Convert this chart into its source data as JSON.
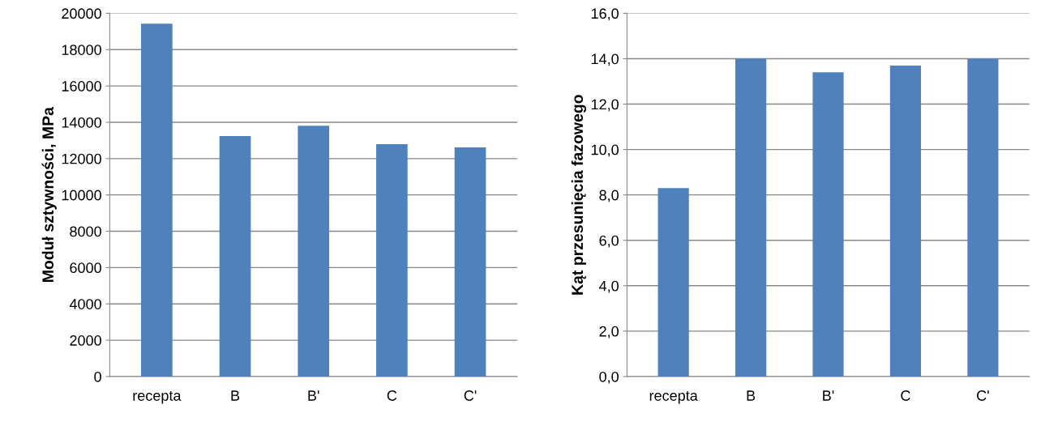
{
  "chart_data": [
    {
      "type": "bar",
      "ylabel": "Moduł sztywności, MPa",
      "categories": [
        "recepta",
        "B",
        "B'",
        "C",
        "C'"
      ],
      "values": [
        19430,
        13240,
        13810,
        12790,
        12620
      ],
      "color": "#4f81bd",
      "ylim": [
        0,
        20000
      ],
      "yticks": [
        0,
        2000,
        4000,
        6000,
        8000,
        10000,
        12000,
        14000,
        16000,
        18000,
        20000
      ],
      "grid": "y"
    },
    {
      "type": "bar",
      "ylabel": "Kąt przesunięcia fazowego",
      "categories": [
        "recepta",
        "B",
        "B'",
        "C",
        "C'"
      ],
      "values": [
        8.3,
        14.0,
        13.4,
        13.7,
        14.0
      ],
      "color": "#4f81bd",
      "ylim": [
        0,
        16
      ],
      "yticks": [
        {
          "value": 0,
          "label": "0,0"
        },
        {
          "value": 2,
          "label": "2,0"
        },
        {
          "value": 4,
          "label": "4,0"
        },
        {
          "value": 6,
          "label": "6,0"
        },
        {
          "value": 8,
          "label": "8,0"
        },
        {
          "value": 10,
          "label": "10,0"
        },
        {
          "value": 12,
          "label": "12,0"
        },
        {
          "value": 14,
          "label": "14,0"
        },
        {
          "value": 16,
          "label": "16,0"
        }
      ],
      "grid": "y"
    }
  ]
}
